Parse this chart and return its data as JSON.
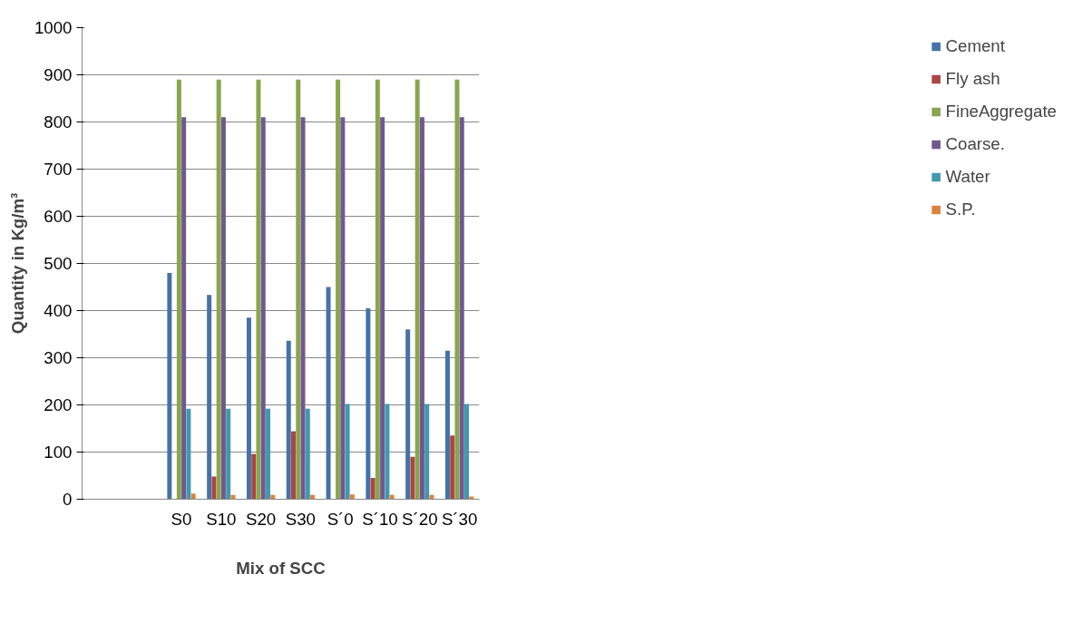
{
  "chart_data": {
    "type": "bar",
    "xlabel": "Mix of SCC",
    "ylabel": "Quantity in Kg/m³",
    "categories": [
      null,
      null,
      "S0",
      "S10",
      "S20",
      "S30",
      "S´0",
      "S´10",
      "S´20",
      "S´30"
    ],
    "series": [
      {
        "name": "Cement",
        "color": "#4572a7",
        "values": [
          null,
          null,
          480,
          433,
          385,
          336,
          450,
          405,
          360,
          315
        ]
      },
      {
        "name": "Fly ash",
        "color": "#aa4643",
        "values": [
          null,
          null,
          0,
          48,
          96,
          144,
          0,
          45,
          90,
          135
        ]
      },
      {
        "name": "FineAggregate",
        "color": "#89a54e",
        "values": [
          null,
          null,
          890,
          890,
          890,
          890,
          890,
          890,
          890,
          890
        ]
      },
      {
        "name": "Coarse.",
        "color": "#71588f",
        "values": [
          null,
          null,
          810,
          810,
          810,
          810,
          810,
          810,
          810,
          810
        ]
      },
      {
        "name": "Water",
        "color": "#4198af",
        "values": [
          null,
          null,
          192,
          192,
          192,
          192,
          202,
          202,
          202,
          202
        ]
      },
      {
        "name": "S.P.",
        "color": "#db843d",
        "values": [
          null,
          null,
          12,
          9,
          9,
          9,
          10,
          9,
          9,
          6
        ]
      }
    ],
    "ylim": [
      0,
      1000
    ],
    "yticks": [
      0,
      100,
      200,
      300,
      400,
      500,
      600,
      700,
      800,
      900,
      1000
    ],
    "grid": "y",
    "legend": "right"
  }
}
